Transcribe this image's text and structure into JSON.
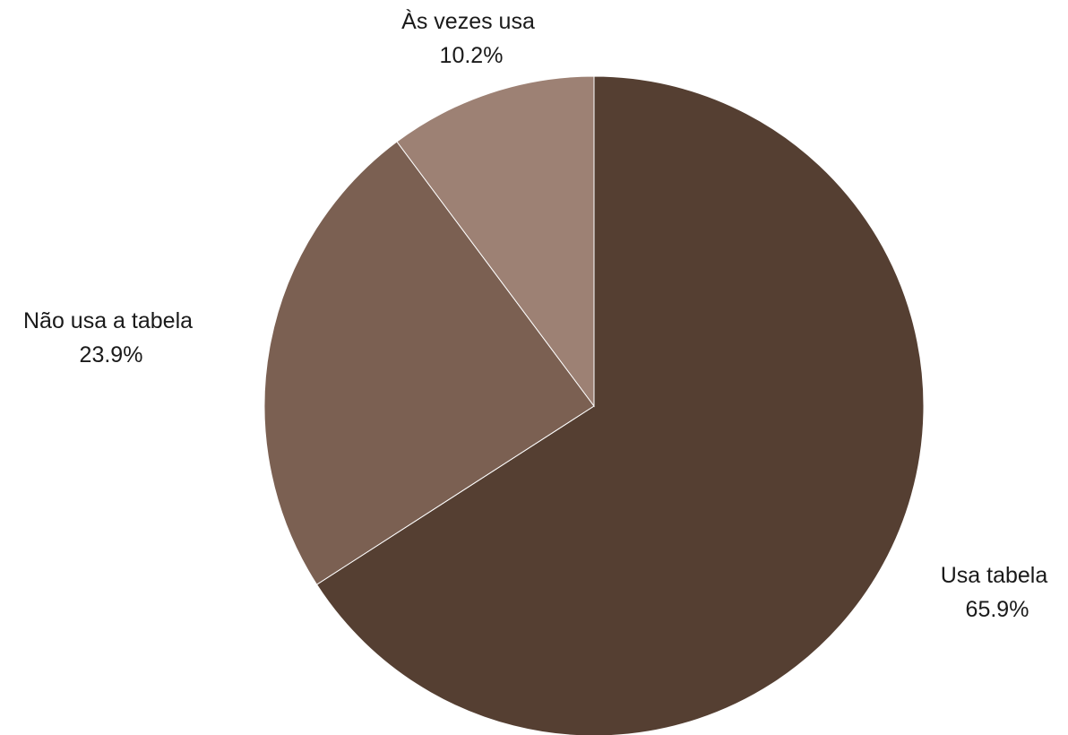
{
  "chart_data": {
    "type": "pie",
    "categories": [
      "Usa tabela",
      "Não usa a tabela",
      "Às vezes usa"
    ],
    "values": [
      65.9,
      23.9,
      10.2
    ],
    "value_labels": [
      "65.9%",
      "23.9%",
      "10.2%"
    ],
    "colors": [
      "#553f32",
      "#7b6052",
      "#9d8174"
    ]
  }
}
